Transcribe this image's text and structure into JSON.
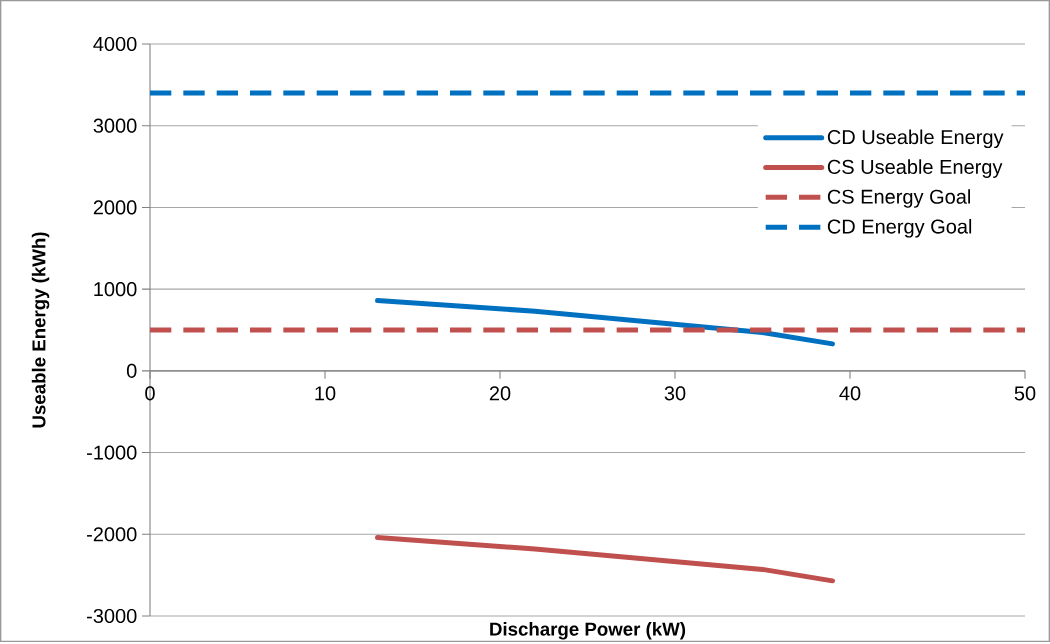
{
  "chart_data": {
    "type": "line",
    "xlabel": "Discharge Power (kW)",
    "ylabel": "Useable Energy (kWh)",
    "series": [
      {
        "name": "CD Useable Energy",
        "color": "#0070c0",
        "x": [
          13,
          22,
          35,
          39
        ],
        "values": [
          860,
          730,
          470,
          330
        ]
      },
      {
        "name": "CS Useable Energy",
        "color": "#c0504d",
        "x": [
          13,
          22,
          35,
          39
        ],
        "values": [
          -2040,
          -2180,
          -2430,
          -2570
        ]
      }
    ],
    "ref_lines": [
      {
        "axis": "y",
        "value": 500,
        "label": "CS Energy Goal",
        "color": "#c0504d",
        "line_style": "dashed"
      },
      {
        "axis": "y",
        "value": 3400,
        "label": "CD Energy Goal",
        "color": "#0070c0",
        "line_style": "dashed"
      }
    ],
    "xlim": [
      0,
      50
    ],
    "xticks": [
      0,
      10,
      20,
      30,
      40,
      50
    ],
    "ylim": [
      -3000,
      4000
    ],
    "yticks": [
      -3000,
      -2000,
      -1000,
      0,
      1000,
      2000,
      3000,
      4000
    ],
    "grid": "y",
    "legend": "top right",
    "marker": "none",
    "line_style": "solid"
  }
}
